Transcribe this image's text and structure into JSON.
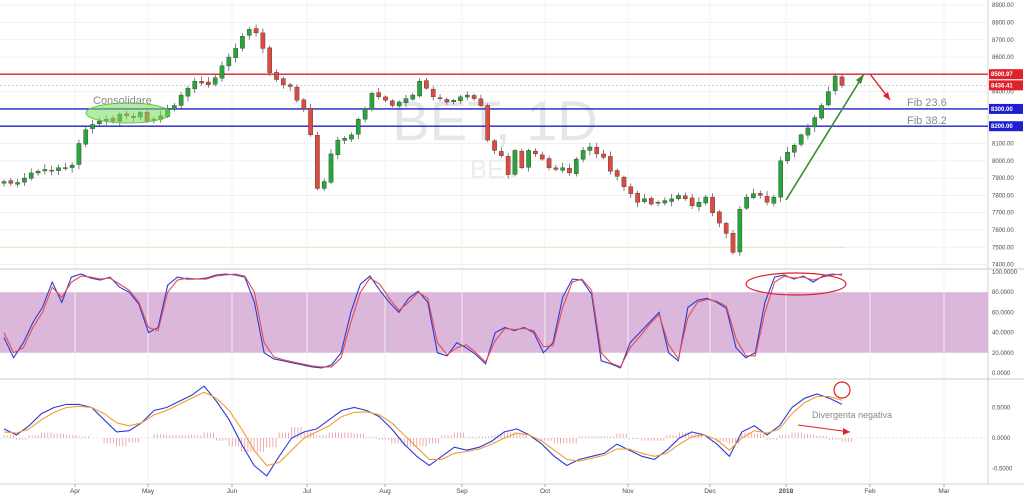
{
  "chart_data": [
    {
      "type": "candlestick",
      "watermark": "BET, 1D",
      "watermark_sub": "BET",
      "y_ticks": [
        "8900.00",
        "8800.00",
        "8700.00",
        "8600.00",
        "8500.00",
        "8400.00",
        "8300.00",
        "8200.00",
        "8100.00",
        "8000.00",
        "7900.00",
        "7800.00",
        "7700.00",
        "7600.00",
        "7500.00",
        "7400.00"
      ],
      "ylim": [
        7380,
        8930
      ],
      "x_ticks": [
        "Apr",
        "May",
        "Jun",
        "Jul",
        "Aug",
        "Sep",
        "Oct",
        "Nov",
        "Dec",
        "2018",
        "Feb",
        "Mar"
      ],
      "horizontal_lines": [
        {
          "value": 8500.97,
          "label": "8500.97",
          "color": "#e0202a"
        },
        {
          "value": 8300.0,
          "label": "8300.00",
          "color": "#1f1fd1"
        },
        {
          "value": 8200.0,
          "label": "8200.00",
          "color": "#1f1fd1"
        }
      ],
      "last_price": {
        "value": 8436.41,
        "label": "8436.41",
        "color": "#e0202a"
      },
      "annotations": [
        {
          "text": "Consolidare",
          "kind": "ellipse-label"
        },
        {
          "text": "Fib 23.6"
        },
        {
          "text": "Fib 38.2"
        }
      ],
      "candles": [
        7880,
        7870,
        7875,
        7900,
        7930,
        7940,
        7950,
        7945,
        7960,
        7955,
        7975,
        8100,
        8180,
        8210,
        8230,
        8240,
        8230,
        8270,
        8260,
        8250,
        8280,
        8230,
        8240,
        8260,
        8300,
        8320,
        8380,
        8420,
        8460,
        8450,
        8440,
        8480,
        8550,
        8600,
        8650,
        8720,
        8760,
        8740,
        8650,
        8510,
        8470,
        8440,
        8430,
        8350,
        8300,
        8150,
        7840,
        7880,
        8040,
        8120,
        8130,
        8150,
        8240,
        8300,
        8390,
        8370,
        8350,
        8320,
        8340,
        8360,
        8380,
        8460,
        8420,
        8370,
        8360,
        8340,
        8350,
        8370,
        8380,
        8360,
        8320,
        8120,
        8060,
        8030,
        7920,
        8060,
        7960,
        8060,
        8040,
        8010,
        7960,
        7950,
        7960,
        7930,
        8010,
        8060,
        8080,
        8040,
        8020,
        7940,
        7910,
        7850,
        7810,
        7760,
        7780,
        7750,
        7760,
        7770,
        7780,
        7800,
        7780,
        7740,
        7760,
        7790,
        7700,
        7640,
        7580,
        7470,
        7720,
        7790,
        7810,
        7800,
        7760,
        7790,
        8000,
        8050,
        8090,
        8150,
        8190,
        8250,
        8320,
        8400,
        8490,
        8436
      ]
    },
    {
      "type": "line",
      "y_ticks": [
        "100.0000",
        "80.0000",
        "60.0000",
        "40.0000",
        "20.0000",
        "0.0000"
      ],
      "ylim": [
        -5,
        102
      ],
      "band": [
        20,
        80
      ],
      "series": [
        {
          "color": "#2a3bd6",
          "values": [
            35,
            15,
            30,
            50,
            65,
            90,
            70,
            95,
            98,
            94,
            92,
            95,
            85,
            80,
            68,
            40,
            45,
            87,
            95,
            93,
            93,
            94,
            97,
            98,
            97,
            95,
            70,
            20,
            14,
            12,
            10,
            8,
            6,
            5,
            8,
            20,
            60,
            88,
            96,
            82,
            70,
            60,
            74,
            81,
            70,
            20,
            17,
            30,
            25,
            18,
            9,
            40,
            45,
            42,
            45,
            40,
            20,
            30,
            75,
            93,
            92,
            78,
            12,
            9,
            5,
            30,
            40,
            50,
            60,
            20,
            12,
            65,
            72,
            74,
            70,
            64,
            25,
            15,
            20,
            70,
            95,
            97,
            93,
            96,
            90,
            96,
            98,
            97
          ]
        },
        {
          "color": "#e84a4a",
          "values": [
            40,
            20,
            25,
            45,
            60,
            85,
            75,
            90,
            96,
            95,
            93,
            94,
            88,
            82,
            70,
            45,
            42,
            80,
            92,
            94,
            93,
            93,
            96,
            97,
            98,
            96,
            80,
            30,
            16,
            13,
            11,
            9,
            7,
            6,
            6,
            15,
            50,
            80,
            94,
            88,
            74,
            62,
            70,
            80,
            74,
            30,
            18,
            25,
            28,
            20,
            11,
            32,
            44,
            43,
            44,
            42,
            26,
            27,
            65,
            90,
            93,
            82,
            20,
            10,
            6,
            25,
            36,
            48,
            58,
            28,
            14,
            55,
            70,
            73,
            71,
            66,
            34,
            17,
            17,
            60,
            90,
            96,
            94,
            95,
            92,
            95,
            97,
            98
          ]
        }
      ]
    },
    {
      "type": "line",
      "y_ticks": [
        "0.5000",
        "0.0000",
        "-0.5000"
      ],
      "ylim": [
        -0.72,
        0.95
      ],
      "series": [
        {
          "color": "#2a3bd6",
          "values": [
            0.15,
            0.05,
            0.2,
            0.4,
            0.5,
            0.55,
            0.55,
            0.5,
            0.3,
            0.1,
            0.12,
            0.25,
            0.45,
            0.5,
            0.6,
            0.7,
            0.85,
            0.6,
            0.3,
            -0.1,
            -0.45,
            -0.62,
            -0.3,
            0.0,
            0.1,
            0.15,
            0.3,
            0.45,
            0.5,
            0.45,
            0.35,
            0.15,
            -0.1,
            -0.3,
            -0.45,
            -0.3,
            -0.15,
            -0.2,
            -0.15,
            -0.05,
            0.1,
            0.15,
            0.05,
            -0.1,
            -0.3,
            -0.45,
            -0.35,
            -0.3,
            -0.25,
            -0.1,
            -0.2,
            -0.3,
            -0.35,
            -0.2,
            0.0,
            0.1,
            0.05,
            -0.1,
            -0.3,
            0.1,
            0.2,
            0.05,
            0.2,
            0.5,
            0.65,
            0.72,
            0.65,
            0.55
          ]
        },
        {
          "color": "#f39c32",
          "values": [
            0.1,
            0.08,
            0.15,
            0.3,
            0.42,
            0.5,
            0.52,
            0.5,
            0.4,
            0.25,
            0.2,
            0.25,
            0.38,
            0.45,
            0.55,
            0.65,
            0.75,
            0.65,
            0.45,
            0.15,
            -0.2,
            -0.45,
            -0.4,
            -0.2,
            0.0,
            0.1,
            0.2,
            0.35,
            0.42,
            0.43,
            0.38,
            0.25,
            0.05,
            -0.15,
            -0.35,
            -0.35,
            -0.25,
            -0.22,
            -0.18,
            -0.1,
            0.0,
            0.08,
            0.05,
            -0.05,
            -0.2,
            -0.35,
            -0.38,
            -0.33,
            -0.28,
            -0.18,
            -0.18,
            -0.25,
            -0.3,
            -0.25,
            -0.1,
            0.02,
            0.05,
            -0.03,
            -0.2,
            0.0,
            0.12,
            0.08,
            0.15,
            0.4,
            0.58,
            0.68,
            0.68,
            0.62
          ]
        }
      ],
      "annotations": [
        {
          "text": "Divergenta negativa"
        }
      ]
    }
  ]
}
